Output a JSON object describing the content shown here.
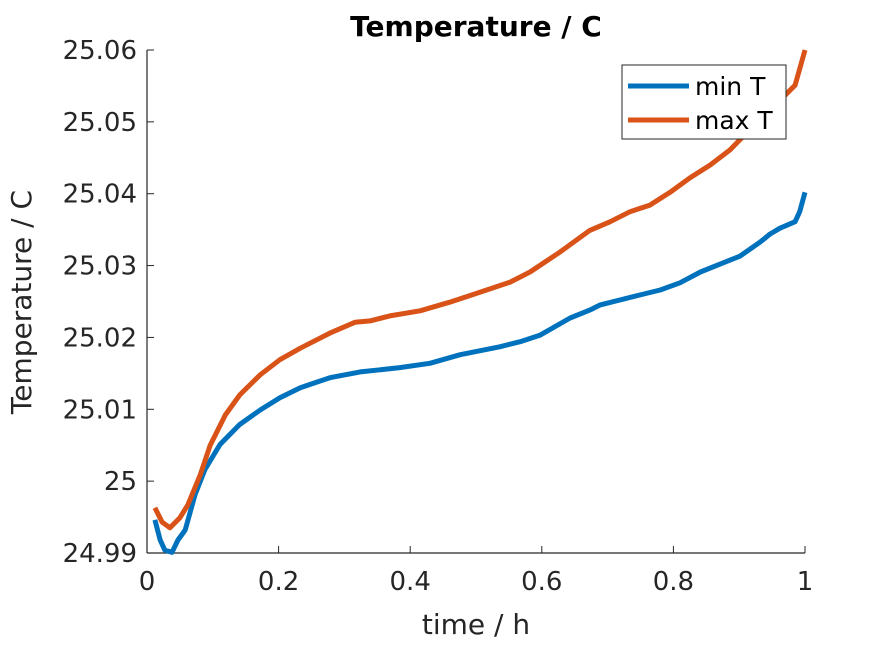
{
  "chart_data": {
    "type": "line",
    "title": "Temperature / C",
    "xlabel": "time / h",
    "ylabel": "Temperature / C",
    "xlim": [
      0,
      1
    ],
    "ylim": [
      24.99,
      25.06
    ],
    "xticks": [
      0,
      0.2,
      0.4,
      0.6,
      0.8,
      1
    ],
    "xtick_labels": [
      "0",
      "0.2",
      "0.4",
      "0.6",
      "0.8",
      "1"
    ],
    "yticks": [
      24.99,
      25,
      25.01,
      25.02,
      25.03,
      25.04,
      25.05,
      25.06
    ],
    "ytick_labels": [
      "24.99",
      "25",
      "25.01",
      "25.02",
      "25.03",
      "25.04",
      "25.05",
      "25.06"
    ],
    "grid": false,
    "legend_placement": "top-right",
    "series": [
      {
        "name": "min T",
        "color": "#0072BD",
        "x": [
          0.012,
          0.02,
          0.027,
          0.038,
          0.047,
          0.058,
          0.073,
          0.088,
          0.111,
          0.141,
          0.172,
          0.202,
          0.233,
          0.278,
          0.324,
          0.354,
          0.384,
          0.43,
          0.476,
          0.536,
          0.567,
          0.597,
          0.643,
          0.673,
          0.688,
          0.749,
          0.78,
          0.81,
          0.841,
          0.871,
          0.901,
          0.932,
          0.947,
          0.962,
          0.985,
          0.992,
          1.0
        ],
        "y": [
          24.9946,
          24.9918,
          24.9904,
          24.9901,
          24.9918,
          24.9932,
          24.9981,
          25.0016,
          25.0051,
          25.0079,
          25.0099,
          25.0116,
          25.013,
          25.0144,
          25.0152,
          25.0155,
          25.0158,
          25.0164,
          25.0176,
          25.0187,
          25.0194,
          25.0203,
          25.0227,
          25.0238,
          25.0245,
          25.0259,
          25.0266,
          25.0276,
          25.0291,
          25.0302,
          25.0313,
          25.0333,
          25.0344,
          25.0352,
          25.0361,
          25.0375,
          25.0402
        ]
      },
      {
        "name": "max T",
        "color": "#D95319",
        "x": [
          0.012,
          0.023,
          0.035,
          0.05,
          0.062,
          0.081,
          0.096,
          0.119,
          0.141,
          0.172,
          0.202,
          0.233,
          0.278,
          0.316,
          0.339,
          0.369,
          0.415,
          0.46,
          0.506,
          0.552,
          0.582,
          0.628,
          0.673,
          0.704,
          0.734,
          0.764,
          0.795,
          0.825,
          0.856,
          0.886,
          0.901,
          0.932,
          0.962,
          0.985,
          1.0
        ],
        "y": [
          24.9963,
          24.9943,
          24.9935,
          24.9949,
          24.9967,
          25.0009,
          25.005,
          25.0092,
          25.012,
          25.0148,
          25.0169,
          25.0185,
          25.0206,
          25.0221,
          25.0223,
          25.023,
          25.0237,
          25.0249,
          25.0263,
          25.0277,
          25.0291,
          25.0319,
          25.0349,
          25.0361,
          25.0375,
          25.0384,
          25.0402,
          25.0422,
          25.044,
          25.0461,
          25.0475,
          25.0505,
          25.053,
          25.0551,
          25.06
        ]
      }
    ]
  }
}
